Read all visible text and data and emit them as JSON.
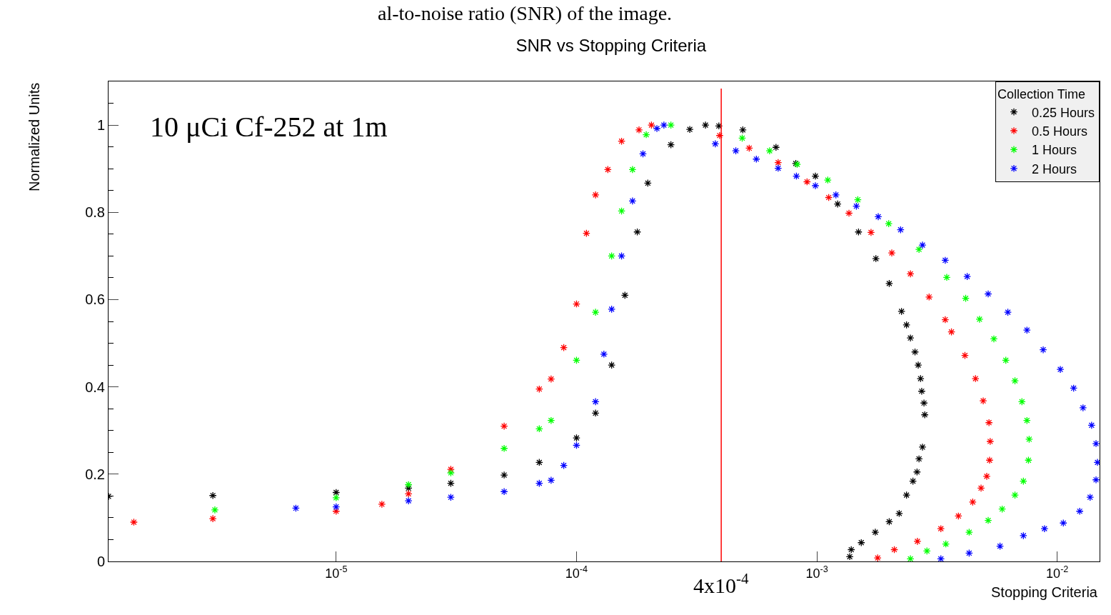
{
  "chart_data": {
    "type": "scatter",
    "title": "SNR vs Stopping Criteria",
    "xlabel": "Stopping Criteria",
    "ylabel": "Normalized Units",
    "legend_title": "Collection Time",
    "legend": "top right",
    "marker": "cross",
    "log": "x",
    "xlim": [
      1.13e-06,
      0.015
    ],
    "xticks": [
      {
        "value": 1e-05,
        "label": "10$^{-5}$"
      },
      {
        "value": 0.0001,
        "label": "10$^{-4}$"
      },
      {
        "value": 0.001,
        "label": "10$^{-3}$"
      },
      {
        "value": 0.01,
        "label": "10$^{-2}$"
      }
    ],
    "ylim": [
      0,
      1.1
    ],
    "yticks": [
      0,
      0.2,
      0.4,
      0.6,
      0.8,
      1
    ],
    "annotations": [
      "al-to-noise ratio (SNR) of the image.",
      "10 μCi Cf-252 at 1m"
    ],
    "ref_lines": [
      {
        "axis": "x",
        "value": 0.0004,
        "label": "4x10$^{-4}$",
        "color": "#ff0000"
      }
    ],
    "series": [
      {
        "name": "0.25 Hours",
        "color": "#000000",
        "x": [
          1.13e-06,
          3.07e-06,
          1e-05,
          2e-05,
          3e-05,
          5e-05,
          7e-05,
          0.0001,
          0.00012,
          0.00014,
          0.000159,
          0.000179,
          0.000198,
          0.000247,
          0.000296,
          0.000344,
          0.000391,
          0.000492,
          0.000676,
          0.000817,
          0.000986,
          0.00122,
          0.00149,
          0.00176,
          0.002,
          0.00225,
          0.00236,
          0.00245,
          0.00256,
          0.00264,
          0.0027,
          0.00273,
          0.00279,
          0.00281,
          0.00275,
          0.00266,
          0.00261,
          0.00251,
          0.00236,
          0.0022,
          0.002,
          0.00175,
          0.00153,
          0.00139,
          0.00137
        ],
        "values": [
          0.149,
          0.151,
          0.158,
          0.168,
          0.179,
          0.198,
          0.227,
          0.283,
          0.34,
          0.45,
          0.61,
          0.755,
          0.867,
          0.955,
          0.99,
          1.0,
          0.998,
          0.989,
          0.949,
          0.912,
          0.883,
          0.819,
          0.755,
          0.694,
          0.637,
          0.573,
          0.542,
          0.512,
          0.48,
          0.45,
          0.419,
          0.39,
          0.363,
          0.336,
          0.262,
          0.235,
          0.205,
          0.184,
          0.152,
          0.11,
          0.091,
          0.067,
          0.043,
          0.027,
          0.011
        ]
      },
      {
        "name": "0.5 Hours",
        "color": "#ff0000",
        "x": [
          1.44e-06,
          3.07e-06,
          1e-05,
          1.55e-05,
          2e-05,
          3e-05,
          5e-05,
          7e-05,
          7.84e-05,
          8.85e-05,
          0.0001,
          0.00011,
          0.00012,
          0.000135,
          0.000154,
          0.000182,
          0.000205,
          0.000394,
          0.000523,
          0.00069,
          0.00091,
          0.00112,
          0.00136,
          0.00168,
          0.00205,
          0.00245,
          0.00293,
          0.00342,
          0.00363,
          0.00413,
          0.00457,
          0.00492,
          0.0052,
          0.00526,
          0.00523,
          0.00509,
          0.00482,
          0.00445,
          0.00388,
          0.00328,
          0.00262,
          0.0021,
          0.00179
        ],
        "values": [
          0.09,
          0.098,
          0.115,
          0.131,
          0.155,
          0.211,
          0.31,
          0.395,
          0.418,
          0.49,
          0.59,
          0.752,
          0.84,
          0.898,
          0.963,
          0.989,
          1.0,
          0.976,
          0.947,
          0.914,
          0.87,
          0.834,
          0.798,
          0.754,
          0.707,
          0.659,
          0.606,
          0.554,
          0.526,
          0.472,
          0.419,
          0.368,
          0.318,
          0.275,
          0.232,
          0.195,
          0.168,
          0.136,
          0.104,
          0.075,
          0.046,
          0.027,
          0.008
        ]
      },
      {
        "name": "1 Hours",
        "color": "#00ff00",
        "x": [
          3.13e-06,
          1e-05,
          2e-05,
          3e-05,
          5e-05,
          7e-05,
          7.84e-05,
          0.0001,
          0.00012,
          0.00014,
          0.000154,
          0.000171,
          0.000195,
          0.000247,
          0.000489,
          0.000636,
          0.000828,
          0.00111,
          0.00148,
          0.00199,
          0.00266,
          0.00347,
          0.00416,
          0.00475,
          0.00545,
          0.00611,
          0.00667,
          0.00713,
          0.00748,
          0.00764,
          0.00759,
          0.00723,
          0.00667,
          0.0059,
          0.00516,
          0.0043,
          0.00344,
          0.00287,
          0.00245
        ],
        "values": [
          0.118,
          0.146,
          0.176,
          0.203,
          0.259,
          0.304,
          0.323,
          0.461,
          0.571,
          0.7,
          0.803,
          0.898,
          0.978,
          1.0,
          0.97,
          0.941,
          0.91,
          0.874,
          0.829,
          0.774,
          0.715,
          0.651,
          0.603,
          0.555,
          0.51,
          0.461,
          0.414,
          0.366,
          0.323,
          0.28,
          0.232,
          0.184,
          0.152,
          0.12,
          0.094,
          0.067,
          0.04,
          0.024,
          0.006
        ]
      },
      {
        "name": "2 Hours",
        "color": "#0000ff",
        "x": [
          6.8e-06,
          1e-05,
          2e-05,
          3e-05,
          5e-05,
          7e-05,
          7.84e-05,
          8.85e-05,
          0.0001,
          0.00012,
          0.00013,
          0.00014,
          0.000154,
          0.000171,
          0.000189,
          0.000216,
          0.000231,
          0.000378,
          0.00046,
          0.00056,
          0.00069,
          0.000822,
          0.000986,
          0.0012,
          0.00146,
          0.0018,
          0.00223,
          0.00275,
          0.00342,
          0.00422,
          0.00516,
          0.00623,
          0.00748,
          0.00874,
          0.0103,
          0.0117,
          0.0128,
          0.0139,
          0.0145,
          0.0147,
          0.0145,
          0.0137,
          0.0124,
          0.0106,
          0.00885,
          0.00723,
          0.00578,
          0.0043,
          0.00328
        ],
        "values": [
          0.122,
          0.125,
          0.139,
          0.147,
          0.16,
          0.179,
          0.186,
          0.22,
          0.266,
          0.366,
          0.475,
          0.578,
          0.7,
          0.826,
          0.934,
          0.992,
          1.0,
          0.957,
          0.941,
          0.922,
          0.901,
          0.883,
          0.861,
          0.84,
          0.814,
          0.79,
          0.76,
          0.725,
          0.69,
          0.653,
          0.613,
          0.571,
          0.53,
          0.485,
          0.44,
          0.397,
          0.352,
          0.312,
          0.27,
          0.227,
          0.187,
          0.147,
          0.115,
          0.088,
          0.075,
          0.059,
          0.035,
          0.019,
          0.006
        ]
      }
    ]
  }
}
